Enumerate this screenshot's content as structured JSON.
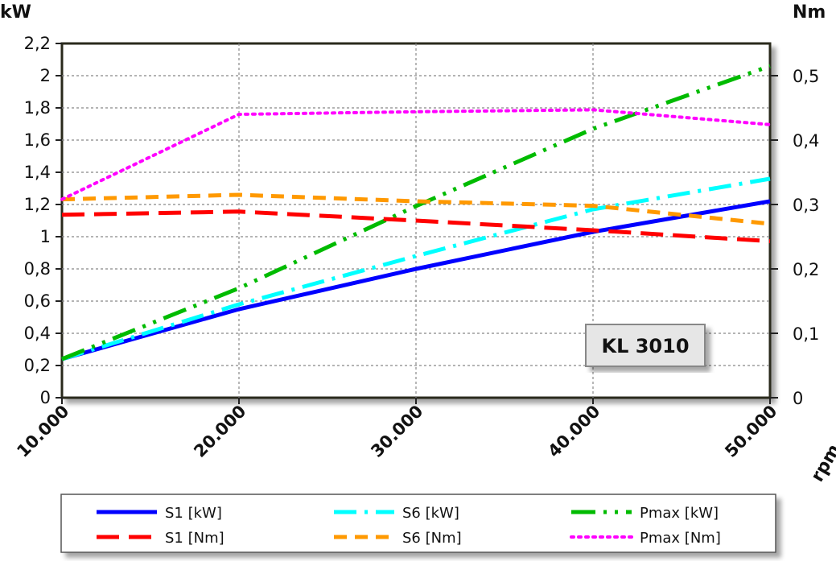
{
  "chart_data": {
    "type": "line",
    "title": "",
    "badge": "KL 3010",
    "xlabel": "rpm",
    "ylabel_left": "kW",
    "ylabel_right": "Nm",
    "x": [
      10000,
      20000,
      30000,
      40000,
      50000
    ],
    "x_tick_labels": [
      "10.000",
      "20.000",
      "30.000",
      "40.000",
      "50.000"
    ],
    "ylim_left": [
      0,
      2.2
    ],
    "ylim_right": [
      0,
      0.55
    ],
    "y_left_tick_labels": [
      "0",
      "0,2",
      "0,4",
      "0,6",
      "0,8",
      "1",
      "1,2",
      "1,4",
      "1,6",
      "1,8",
      "2",
      "2,2"
    ],
    "y_right_tick_labels": [
      "0",
      "0,1",
      "0,2",
      "0,3",
      "0,4",
      "0,5"
    ],
    "grid": true,
    "legend_position": "bottom",
    "series": [
      {
        "name": "S1 [kW]",
        "axis": "left",
        "color": "#0000ff",
        "style": "solid",
        "values": [
          0.24,
          0.55,
          0.8,
          1.03,
          1.22
        ]
      },
      {
        "name": "S6 [kW]",
        "axis": "left",
        "color": "#00ffff",
        "style": "dashdot",
        "values": [
          0.24,
          0.58,
          0.88,
          1.17,
          1.36
        ]
      },
      {
        "name": "Pmax [kW]",
        "axis": "left",
        "color": "#00bb00",
        "style": "dashdotdot",
        "values": [
          0.24,
          0.68,
          1.19,
          1.67,
          2.06
        ]
      },
      {
        "name": "S1 [Nm]",
        "axis": "right",
        "color": "#ff0000",
        "style": "longdash",
        "values": [
          0.284,
          0.289,
          0.275,
          0.26,
          0.243
        ]
      },
      {
        "name": "S6 [Nm]",
        "axis": "right",
        "color": "#ff9900",
        "style": "dash",
        "values": [
          0.308,
          0.315,
          0.305,
          0.298,
          0.27
        ]
      },
      {
        "name": "Pmax [Nm]",
        "axis": "right",
        "color": "#ff00ff",
        "style": "dot",
        "values": [
          0.308,
          0.44,
          0.444,
          0.447,
          0.424
        ]
      }
    ]
  }
}
